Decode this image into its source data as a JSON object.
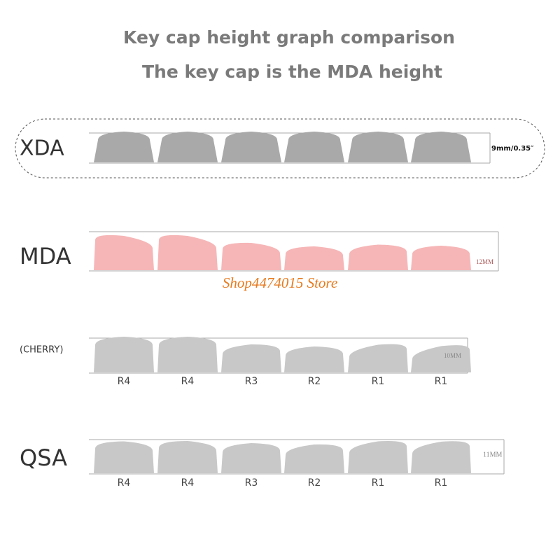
{
  "header": {
    "title": "Key cap height graph comparison",
    "subtitle": "The key cap is the MDA height"
  },
  "profiles": [
    {
      "name": "XDA",
      "height": "9mm/0.35″"
    },
    {
      "name": "MDA",
      "height": "12MM"
    },
    {
      "name": "(CHERRY)",
      "height": "10MM",
      "rows": [
        "R4",
        "R4",
        "R3",
        "R2",
        "R1",
        "R1"
      ]
    },
    {
      "name": "QSA",
      "height": "11MM",
      "rows": [
        "R4",
        "R4",
        "R3",
        "R2",
        "R1",
        "R1"
      ]
    }
  ],
  "watermark": "Shop4474015 Store"
}
